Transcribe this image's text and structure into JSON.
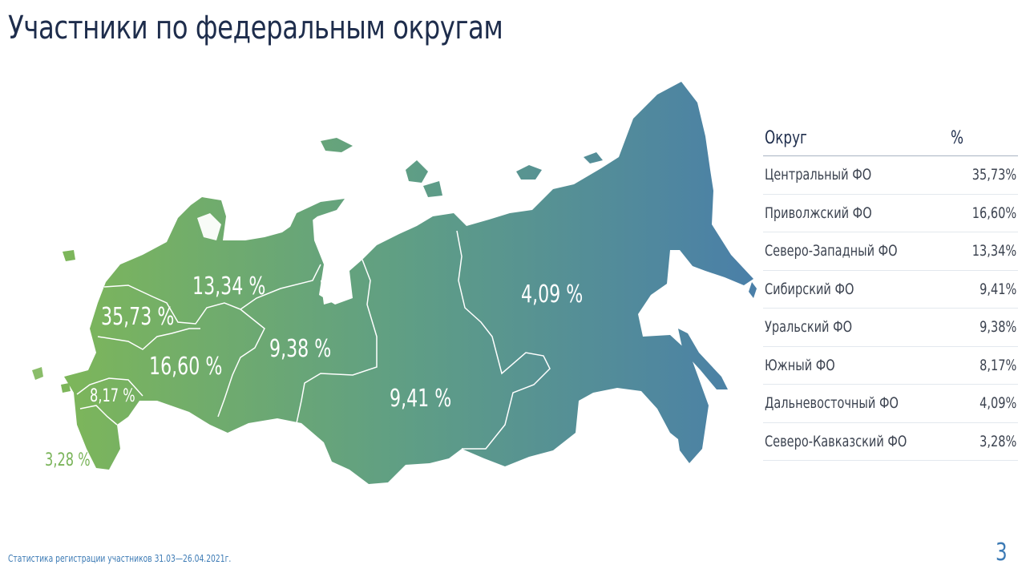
{
  "title": "Участники по федеральным округам",
  "map": {
    "labels": {
      "szfo": "13,34 %",
      "cfo": "35,73 %",
      "pfo": "16,60 %",
      "ufo": "9,38 %",
      "sfo": "9,41 %",
      "dfo": "4,09 %",
      "yfo": "8,17 %",
      "skfo": "3,28 %"
    },
    "colors": {
      "west": "#7db65a",
      "middle": "#5f9e85",
      "east": "#4a7fa8",
      "border": "#ffffff"
    }
  },
  "legend": {
    "header": {
      "district": "Округ",
      "percent": "%"
    },
    "rows": [
      {
        "name": "Центральный ФО",
        "value": "35,73%"
      },
      {
        "name": "Приволжский ФО",
        "value": "16,60%"
      },
      {
        "name": "Северо-Западный ФО",
        "value": "13,34%"
      },
      {
        "name": "Сибирский ФО",
        "value": "9,41%"
      },
      {
        "name": "Уральский ФО",
        "value": "9,38%"
      },
      {
        "name": "Южный ФО",
        "value": "8,17%"
      },
      {
        "name": "Дальневосточный ФО",
        "value": "4,09%"
      },
      {
        "name": "Северо-Кавказский ФО",
        "value": "3,28%"
      }
    ]
  },
  "footer": "Статистика регистрации участников 31.03—26.04.2021г.",
  "page_number": "3"
}
